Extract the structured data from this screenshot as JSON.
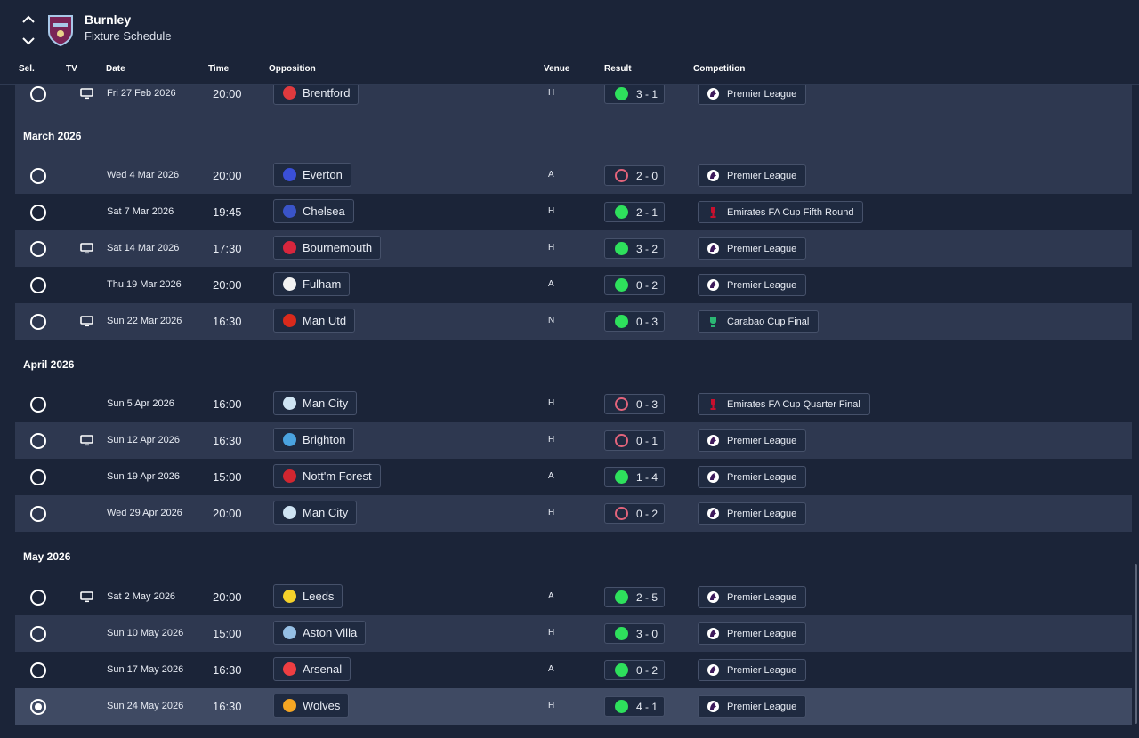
{
  "header": {
    "club": "Burnley",
    "page": "Fixture Schedule"
  },
  "columns": {
    "sel": "Sel.",
    "tv": "TV",
    "date": "Date",
    "time": "Time",
    "opposition": "Opposition",
    "venue": "Venue",
    "result": "Result",
    "competition": "Competition"
  },
  "months": {
    "march": "March 2026",
    "april": "April 2026",
    "may": "May 2026"
  },
  "fixtures": [
    {
      "selected": false,
      "tv": true,
      "date": "Fri 27 Feb 2026",
      "time": "20:00",
      "opponent": "Brentford",
      "crest_color": "#e03a3e",
      "venue": "H",
      "outcome": "win",
      "score": "3 - 1",
      "competition": "Premier League",
      "comp_icon": "premier-league-icon"
    },
    {
      "selected": false,
      "tv": false,
      "date": "Wed 4 Mar 2026",
      "time": "20:00",
      "opponent": "Everton",
      "crest_color": "#3a4fd8",
      "venue": "A",
      "outcome": "loss",
      "score": "2 - 0",
      "competition": "Premier League",
      "comp_icon": "premier-league-icon"
    },
    {
      "selected": false,
      "tv": false,
      "date": "Sat 7 Mar 2026",
      "time": "19:45",
      "opponent": "Chelsea",
      "crest_color": "#3a54c8",
      "venue": "H",
      "outcome": "win",
      "score": "2 - 1",
      "competition": "Emirates FA Cup Fifth Round",
      "comp_icon": "fa-cup-icon"
    },
    {
      "selected": false,
      "tv": true,
      "date": "Sat 14 Mar 2026",
      "time": "17:30",
      "opponent": "Bournemouth",
      "crest_color": "#d7263d",
      "venue": "H",
      "outcome": "win",
      "score": "3 - 2",
      "competition": "Premier League",
      "comp_icon": "premier-league-icon"
    },
    {
      "selected": false,
      "tv": false,
      "date": "Thu 19 Mar 2026",
      "time": "20:00",
      "opponent": "Fulham",
      "crest_color": "#f2f2f2",
      "venue": "A",
      "outcome": "win",
      "score": "0 - 2",
      "competition": "Premier League",
      "comp_icon": "premier-league-icon"
    },
    {
      "selected": false,
      "tv": true,
      "date": "Sun 22 Mar 2026",
      "time": "16:30",
      "opponent": "Man Utd",
      "crest_color": "#da2a1c",
      "venue": "N",
      "outcome": "win",
      "score": "0 - 3",
      "competition": "Carabao Cup Final",
      "comp_icon": "carabao-cup-icon"
    },
    {
      "selected": false,
      "tv": false,
      "date": "Sun 5 Apr 2026",
      "time": "16:00",
      "opponent": "Man City",
      "crest_color": "#cfe4f3",
      "venue": "H",
      "outcome": "loss",
      "score": "0 - 3",
      "competition": "Emirates FA Cup Quarter Final",
      "comp_icon": "fa-cup-icon"
    },
    {
      "selected": false,
      "tv": true,
      "date": "Sun 12 Apr 2026",
      "time": "16:30",
      "opponent": "Brighton",
      "crest_color": "#4aa3e0",
      "venue": "H",
      "outcome": "loss",
      "score": "0 - 1",
      "competition": "Premier League",
      "comp_icon": "premier-league-icon"
    },
    {
      "selected": false,
      "tv": false,
      "date": "Sun 19 Apr 2026",
      "time": "15:00",
      "opponent": "Nott'm Forest",
      "crest_color": "#d22630",
      "venue": "A",
      "outcome": "win",
      "score": "1 - 4",
      "competition": "Premier League",
      "comp_icon": "premier-league-icon"
    },
    {
      "selected": false,
      "tv": false,
      "date": "Wed 29 Apr 2026",
      "time": "20:00",
      "opponent": "Man City",
      "crest_color": "#cfe4f3",
      "venue": "H",
      "outcome": "loss",
      "score": "0 - 2",
      "competition": "Premier League",
      "comp_icon": "premier-league-icon"
    },
    {
      "selected": false,
      "tv": true,
      "date": "Sat 2 May 2026",
      "time": "20:00",
      "opponent": "Leeds",
      "crest_color": "#f5d12a",
      "venue": "A",
      "outcome": "win",
      "score": "2 - 5",
      "competition": "Premier League",
      "comp_icon": "premier-league-icon"
    },
    {
      "selected": false,
      "tv": false,
      "date": "Sun 10 May 2026",
      "time": "15:00",
      "opponent": "Aston Villa",
      "crest_color": "#95bfe5",
      "venue": "H",
      "outcome": "win",
      "score": "3 - 0",
      "competition": "Premier League",
      "comp_icon": "premier-league-icon"
    },
    {
      "selected": false,
      "tv": false,
      "date": "Sun 17 May 2026",
      "time": "16:30",
      "opponent": "Arsenal",
      "crest_color": "#ef3e42",
      "venue": "A",
      "outcome": "win",
      "score": "0 - 2",
      "competition": "Premier League",
      "comp_icon": "premier-league-icon"
    },
    {
      "selected": true,
      "tv": false,
      "date": "Sun 24 May 2026",
      "time": "16:30",
      "opponent": "Wolves",
      "crest_color": "#f5a623",
      "venue": "H",
      "outcome": "win",
      "score": "4 - 1",
      "competition": "Premier League",
      "comp_icon": "premier-league-icon"
    }
  ],
  "colors": {
    "background": "#1b2438",
    "row_alt": "#2e3850",
    "row_selected": "#3f4a63",
    "win": "#2ee05c",
    "loss": "#e3647b",
    "badge": "#7a2456"
  }
}
